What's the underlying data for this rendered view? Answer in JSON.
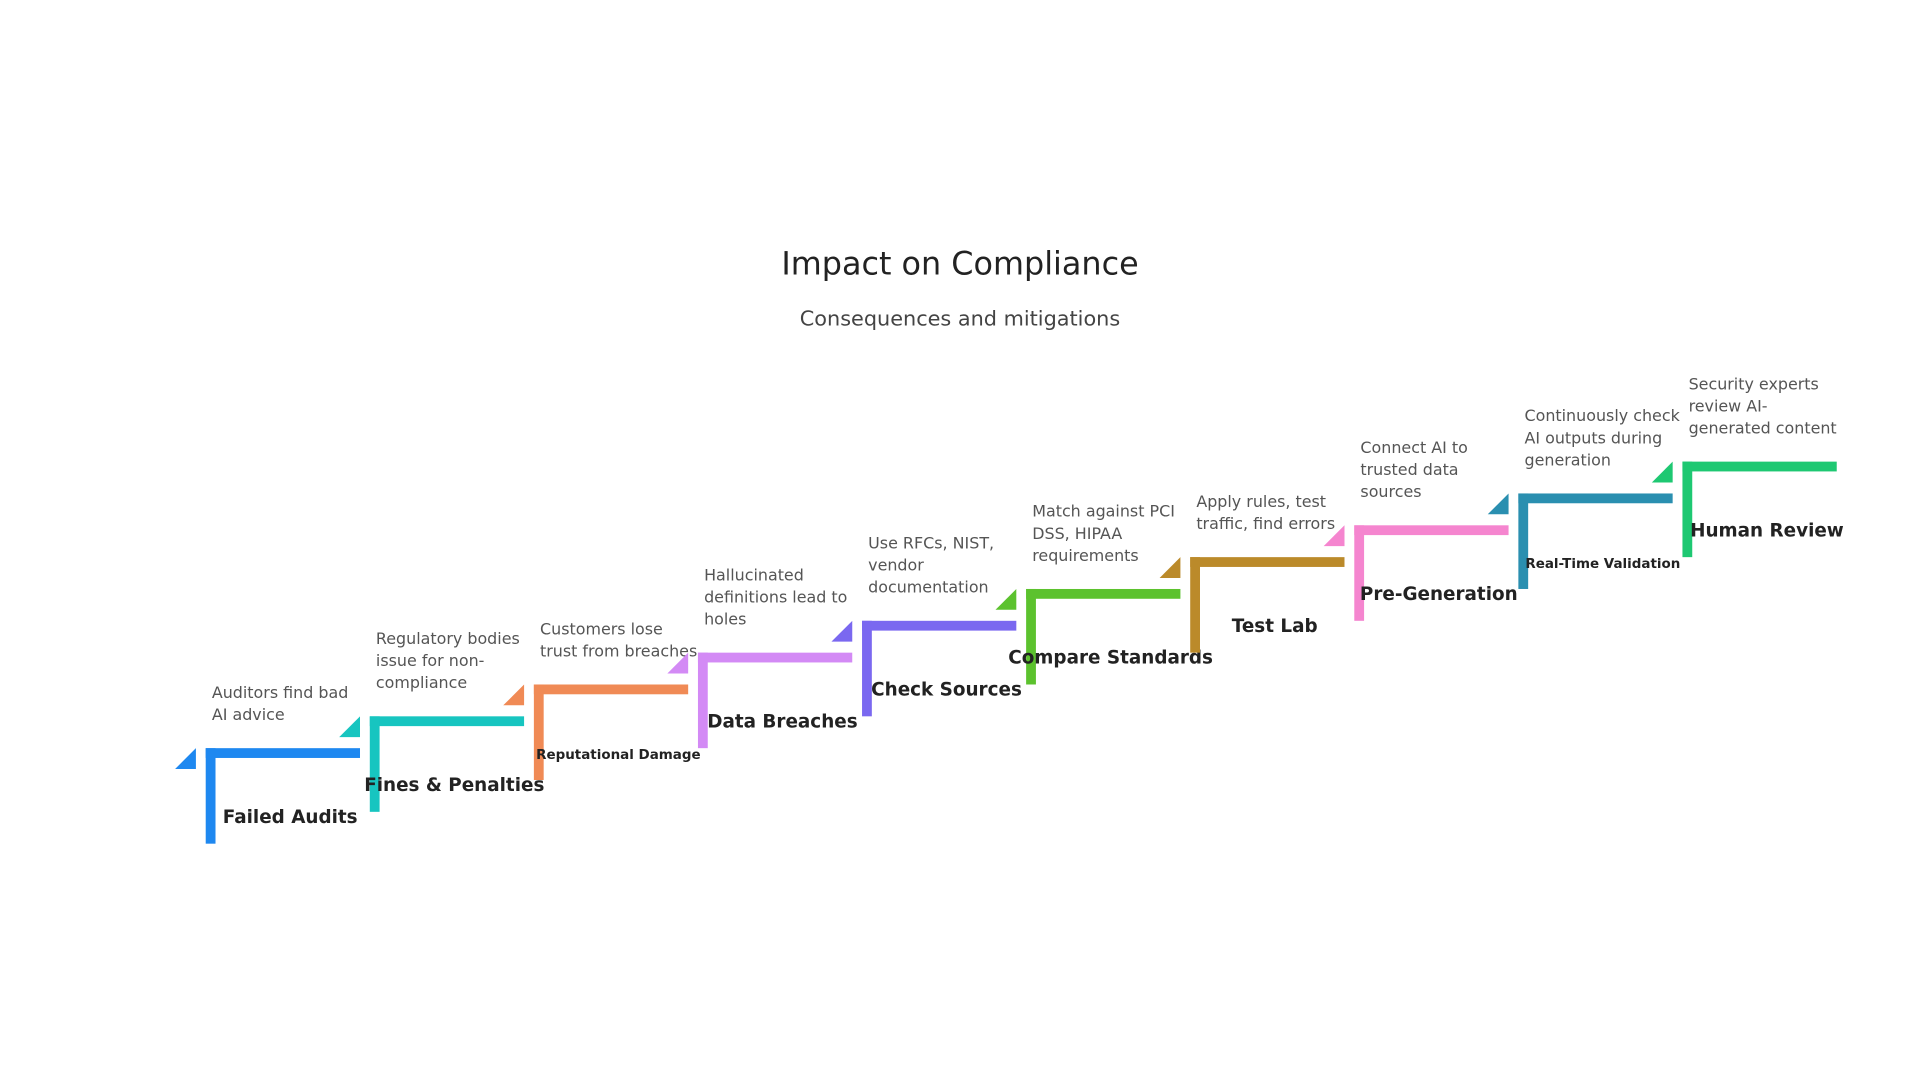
{
  "header": {
    "title": "Impact on Compliance",
    "subtitle": "Consequences and mitigations"
  },
  "steps": [
    {
      "label": "Failed Audits",
      "description": [
        "Auditors find bad",
        "AI advice"
      ]
    },
    {
      "label": "Fines & Penalties",
      "description": [
        "Regulatory bodies",
        "issue for non-",
        "compliance"
      ]
    },
    {
      "label": "Reputational Damage",
      "description": [
        "Customers lose",
        "trust from breaches"
      ]
    },
    {
      "label": "Data Breaches",
      "description": [
        "Hallucinated",
        "definitions lead to",
        "holes"
      ]
    },
    {
      "label": "Check Sources",
      "description": [
        "Use RFCs, NIST,",
        "vendor",
        "documentation"
      ]
    },
    {
      "label": "Compare Standards",
      "description": [
        "Match against PCI",
        "DSS, HIPAA",
        "requirements"
      ]
    },
    {
      "label": "Test Lab",
      "description": [
        "Apply rules, test",
        "traffic, find errors"
      ]
    },
    {
      "label": "Pre-Generation",
      "description": [
        "Connect AI to",
        "trusted data",
        "sources"
      ]
    },
    {
      "label": "Real-Time Validation",
      "description": [
        "Continuously check",
        "AI outputs during",
        "generation"
      ]
    },
    {
      "label": "Human Review",
      "description": [
        "Security experts",
        "review AI-",
        "generated content"
      ]
    }
  ]
}
